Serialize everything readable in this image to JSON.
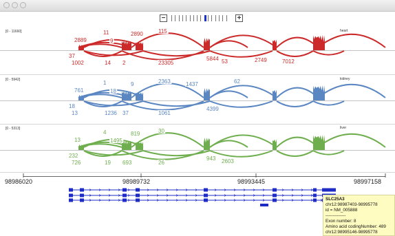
{
  "window": {
    "controls": [
      "close",
      "minimize",
      "zoom"
    ]
  },
  "zoom": {
    "minus_label": "−",
    "plus_label": "+",
    "ticks": 16,
    "selected_tick": 9
  },
  "tracks": [
    {
      "key": "heart",
      "range": "[0 - 11660]",
      "tissue": "heart",
      "color": "#cc2a2a",
      "labels": [
        {
          "t": "37",
          "c": "low"
        },
        {
          "t": "1002",
          "c": "low"
        },
        {
          "t": "2889",
          "c": "up"
        },
        {
          "t": "11",
          "c": "up"
        },
        {
          "t": "14",
          "c": "low"
        },
        {
          "t": "2",
          "c": "low"
        },
        {
          "t": "23305",
          "c": "low"
        },
        {
          "t": "9",
          "c": "up"
        },
        {
          "t": "5844",
          "c": "low"
        },
        {
          "t": "53",
          "c": "low"
        },
        {
          "t": "2890",
          "c": "up"
        },
        {
          "t": "2749",
          "c": "low"
        },
        {
          "t": "7012",
          "c": "low"
        },
        {
          "t": "115",
          "c": "up"
        }
      ]
    },
    {
      "key": "kidney",
      "range": "[0 - 5942]",
      "tissue": "kidney",
      "color": "#5a86c2",
      "labels": [
        {
          "t": "18",
          "c": "low"
        },
        {
          "t": "761",
          "c": "up"
        },
        {
          "t": "1",
          "c": "up"
        },
        {
          "t": "18",
          "c": "up"
        },
        {
          "t": "13",
          "c": "low"
        },
        {
          "t": "9",
          "c": "up"
        },
        {
          "t": "1236",
          "c": "low"
        },
        {
          "t": "2363",
          "c": "up"
        },
        {
          "t": "37",
          "c": "low"
        },
        {
          "t": "1437",
          "c": "up"
        },
        {
          "t": "1061",
          "c": "low"
        },
        {
          "t": "4399",
          "c": "low"
        },
        {
          "t": "62",
          "c": "up"
        }
      ]
    },
    {
      "key": "liver",
      "range": "[0 - 5313]",
      "tissue": "liver",
      "color": "#6fae4e",
      "labels": [
        {
          "t": "13",
          "c": "up"
        },
        {
          "t": "232",
          "c": "low"
        },
        {
          "t": "726",
          "c": "low"
        },
        {
          "t": "19",
          "c": "low"
        },
        {
          "t": "4",
          "c": "up"
        },
        {
          "t": "693",
          "c": "low"
        },
        {
          "t": "1495",
          "c": "up"
        },
        {
          "t": "26",
          "c": "low"
        },
        {
          "t": "819",
          "c": "up"
        },
        {
          "t": "943",
          "c": "low"
        },
        {
          "t": "2603",
          "c": "low"
        },
        {
          "t": "30",
          "c": "up"
        }
      ]
    }
  ],
  "axis": {
    "ticks": [
      "98986020",
      "98989732",
      "98993445",
      "98997158"
    ]
  },
  "tooltip": {
    "gene": "SLC25A3",
    "lines": [
      "chr12:98987403-98995778",
      "id = NM_005888",
      "--------------",
      "Exon number: 8",
      "Amino acid codingNumber: 489",
      "chr12:98995146-98995778"
    ]
  }
}
